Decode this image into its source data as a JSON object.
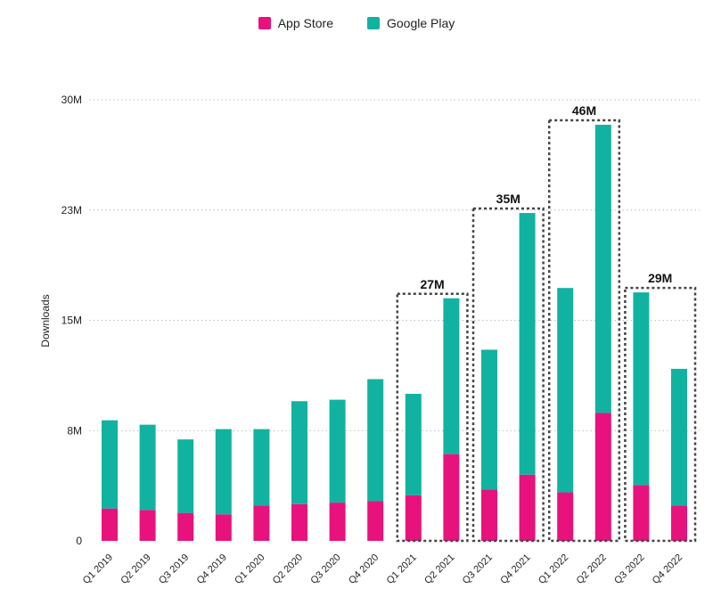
{
  "chart_data": {
    "type": "bar",
    "stacked": true,
    "ylabel": "Downloads",
    "ylim": [
      0,
      30
    ],
    "yticks": [
      {
        "value": 0,
        "label": "0"
      },
      {
        "value": 7.5,
        "label": "8M"
      },
      {
        "value": 15,
        "label": "15M"
      },
      {
        "value": 22.5,
        "label": "23M"
      },
      {
        "value": 30,
        "label": "30M"
      }
    ],
    "grid": true,
    "legend_position": "top-center",
    "categories": [
      "Q1 2019",
      "Q2 2019",
      "Q3 2019",
      "Q4 2019",
      "Q1 2020",
      "Q2 2020",
      "Q3 2020",
      "Q4 2020",
      "Q1 2021",
      "Q2 2021",
      "Q3 2021",
      "Q4 2021",
      "Q1 2022",
      "Q2 2022",
      "Q3 2022",
      "Q4 2022"
    ],
    "series": [
      {
        "name": "App Store",
        "color": "#e8127c",
        "values": [
          2.2,
          2.1,
          1.9,
          1.8,
          2.4,
          2.5,
          2.6,
          2.7,
          3.1,
          5.9,
          3.5,
          4.5,
          3.3,
          8.7,
          3.8,
          2.4
        ]
      },
      {
        "name": "Google Play",
        "color": "#12b2a0",
        "values": [
          6.0,
          5.8,
          5.0,
          5.8,
          5.2,
          7.0,
          7.0,
          8.3,
          6.9,
          10.6,
          9.5,
          17.8,
          13.9,
          19.6,
          13.1,
          9.3
        ]
      }
    ],
    "annotations": [
      {
        "label": "27M",
        "from": 8,
        "to": 9
      },
      {
        "label": "35M",
        "from": 10,
        "to": 11
      },
      {
        "label": "46M",
        "from": 12,
        "to": 13
      },
      {
        "label": "29M",
        "from": 14,
        "to": 15
      }
    ]
  }
}
